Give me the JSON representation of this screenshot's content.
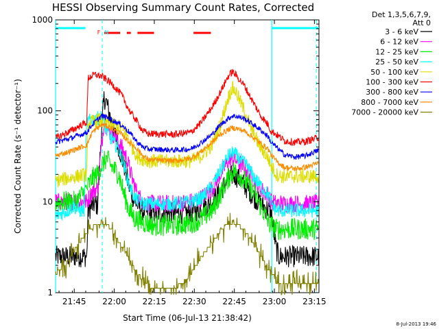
{
  "chart_data": {
    "type": "line",
    "title": "HESSI Observing Summary Count Rates, Corrected",
    "xlabel": "Start Time (06-Jul-13 21:38:42)",
    "ylabel": "Corrected Count Rate (s⁻¹ detector⁻¹)",
    "yscale": "log",
    "ylim": [
      1,
      1000
    ],
    "xlim_minutes": [
      -0.7,
      98
    ],
    "x_unit": "minutes after 21:38:42",
    "xticks": [
      {
        "label": "21:45",
        "t": 6.3
      },
      {
        "label": "22:00",
        "t": 21.3
      },
      {
        "label": "22:15",
        "t": 36.3
      },
      {
        "label": "22:30",
        "t": 51.3
      },
      {
        "label": "22:45",
        "t": 66.3
      },
      {
        "label": "23:00",
        "t": 81.3
      },
      {
        "label": "23:15",
        "t": 96.3
      }
    ],
    "yticks": [
      {
        "label": "1",
        "v": 1
      },
      {
        "label": "10",
        "v": 10
      },
      {
        "label": "100",
        "v": 100
      },
      {
        "label": "1000",
        "v": 1000
      }
    ],
    "legend_header": [
      "Det 1,3,5,6,7,9,",
      "Att 0"
    ],
    "legend_position": "right",
    "series": [
      {
        "name": "3 - 6 keV",
        "color": "#000000",
        "noise": 0.12,
        "points": [
          [
            -0.7,
            2.5
          ],
          [
            7,
            2.5
          ],
          [
            11,
            2.5
          ],
          [
            11.5,
            8
          ],
          [
            13,
            9
          ],
          [
            14,
            9.5
          ],
          [
            15,
            9
          ],
          [
            16.5,
            60
          ],
          [
            17.5,
            140
          ],
          [
            18.5,
            120
          ],
          [
            20,
            80
          ],
          [
            22,
            50
          ],
          [
            25,
            25
          ],
          [
            27,
            14
          ],
          [
            29,
            10
          ],
          [
            32,
            8
          ],
          [
            35,
            7.5
          ],
          [
            40,
            7.5
          ],
          [
            44,
            7.5
          ],
          [
            50,
            7.5
          ],
          [
            54,
            8.5
          ],
          [
            58,
            10
          ],
          [
            61,
            13
          ],
          [
            64,
            18
          ],
          [
            66,
            20
          ],
          [
            68,
            18
          ],
          [
            71,
            14
          ],
          [
            74,
            11
          ],
          [
            76,
            9.5
          ],
          [
            78,
            8.5
          ],
          [
            80,
            8
          ],
          [
            82,
            3
          ],
          [
            83,
            2.5
          ],
          [
            98,
            2.5
          ]
        ]
      },
      {
        "name": "6 - 12 keV",
        "color": "#ff00ff",
        "noise": 0.1,
        "points": [
          [
            -0.7,
            10
          ],
          [
            11,
            10
          ],
          [
            13,
            13
          ],
          [
            15,
            14
          ],
          [
            16.5,
            40
          ],
          [
            17.5,
            80
          ],
          [
            19,
            60
          ],
          [
            21,
            55
          ],
          [
            24,
            40
          ],
          [
            26,
            30
          ],
          [
            28,
            18
          ],
          [
            30,
            12
          ],
          [
            32,
            10
          ],
          [
            35,
            9.5
          ],
          [
            44,
            9.5
          ],
          [
            50,
            10
          ],
          [
            54,
            11
          ],
          [
            58,
            14
          ],
          [
            61,
            20
          ],
          [
            64,
            28
          ],
          [
            66,
            30
          ],
          [
            68,
            27
          ],
          [
            71,
            22
          ],
          [
            74,
            17
          ],
          [
            77,
            13
          ],
          [
            79,
            12
          ],
          [
            80,
            10
          ],
          [
            82,
            9.5
          ],
          [
            98,
            9.5
          ]
        ]
      },
      {
        "name": "12 - 25 keV",
        "color": "#00ee00",
        "noise": 0.12,
        "points": [
          [
            -0.7,
            10
          ],
          [
            7,
            10
          ],
          [
            11,
            14
          ],
          [
            13,
            18
          ],
          [
            15,
            20
          ],
          [
            16.5,
            25
          ],
          [
            18.5,
            30
          ],
          [
            20,
            25
          ],
          [
            23,
            20
          ],
          [
            25,
            12
          ],
          [
            27,
            8
          ],
          [
            29,
            6.5
          ],
          [
            32,
            6
          ],
          [
            36,
            5.5
          ],
          [
            44,
            5.5
          ],
          [
            50,
            5.8
          ],
          [
            54,
            6.5
          ],
          [
            58,
            8
          ],
          [
            61,
            12
          ],
          [
            64,
            18
          ],
          [
            66,
            22
          ],
          [
            68,
            20
          ],
          [
            71,
            16
          ],
          [
            74,
            12
          ],
          [
            77,
            8
          ],
          [
            79,
            6
          ],
          [
            80,
            5.5
          ],
          [
            82,
            5
          ],
          [
            98,
            5
          ]
        ]
      },
      {
        "name": "25 - 50 keV",
        "color": "#00ffff",
        "noise": 0.08,
        "points": [
          [
            -0.7,
            7
          ],
          [
            4,
            8
          ],
          [
            6,
            9
          ],
          [
            8,
            8
          ],
          [
            10,
            8
          ],
          [
            11,
            75
          ],
          [
            13,
            80
          ],
          [
            16.5,
            85
          ],
          [
            18.5,
            60
          ],
          [
            21,
            45
          ],
          [
            23,
            38
          ],
          [
            25,
            25
          ],
          [
            27,
            15
          ],
          [
            29,
            11
          ],
          [
            32,
            9.5
          ],
          [
            36,
            9.5
          ],
          [
            44,
            9.5
          ],
          [
            50,
            10
          ],
          [
            54,
            11
          ],
          [
            58,
            15
          ],
          [
            61,
            22
          ],
          [
            64,
            32
          ],
          [
            66,
            35
          ],
          [
            68,
            30
          ],
          [
            71,
            25
          ],
          [
            74,
            18
          ],
          [
            77,
            14
          ],
          [
            79,
            12
          ],
          [
            80,
            10
          ],
          [
            82,
            8
          ],
          [
            98,
            8
          ]
        ]
      },
      {
        "name": "50 - 100 keV",
        "color": "#dddd00",
        "noise": 0.08,
        "points": [
          [
            -0.7,
            17
          ],
          [
            11,
            20
          ],
          [
            11.5,
            72
          ],
          [
            14,
            78
          ],
          [
            16.5,
            80
          ],
          [
            18.5,
            75
          ],
          [
            20,
            70
          ],
          [
            23,
            68
          ],
          [
            26,
            55
          ],
          [
            28,
            40
          ],
          [
            30,
            31
          ],
          [
            34,
            28
          ],
          [
            44,
            28
          ],
          [
            50,
            28
          ],
          [
            54,
            32
          ],
          [
            58,
            42
          ],
          [
            61,
            70
          ],
          [
            64,
            140
          ],
          [
            65.5,
            180
          ],
          [
            67,
            160
          ],
          [
            70,
            100
          ],
          [
            73,
            60
          ],
          [
            76,
            40
          ],
          [
            79,
            30
          ],
          [
            80,
            25
          ],
          [
            82,
            20
          ],
          [
            84,
            19
          ],
          [
            98,
            19
          ]
        ]
      },
      {
        "name": "100 - 300 keV",
        "color": "#ff0000",
        "noise": 0.04,
        "points": [
          [
            -0.7,
            50
          ],
          [
            5,
            60
          ],
          [
            9,
            70
          ],
          [
            11,
            75
          ],
          [
            11.5,
            230
          ],
          [
            14,
            250
          ],
          [
            16.5,
            240
          ],
          [
            18.5,
            220
          ],
          [
            21,
            190
          ],
          [
            24,
            150
          ],
          [
            27,
            100
          ],
          [
            30,
            75
          ],
          [
            32,
            60
          ],
          [
            34,
            56
          ],
          [
            44,
            55
          ],
          [
            50,
            58
          ],
          [
            54,
            75
          ],
          [
            58,
            110
          ],
          [
            61,
            160
          ],
          [
            64,
            240
          ],
          [
            65.5,
            270
          ],
          [
            67,
            245
          ],
          [
            70,
            190
          ],
          [
            73,
            130
          ],
          [
            76,
            90
          ],
          [
            79,
            70
          ],
          [
            80,
            60
          ],
          [
            82,
            55
          ],
          [
            85,
            47
          ],
          [
            89,
            45
          ],
          [
            93,
            46
          ],
          [
            97,
            50
          ],
          [
            98,
            52
          ]
        ]
      },
      {
        "name": "300 - 800 keV",
        "color": "#0000ff",
        "noise": 0.03,
        "points": [
          [
            -0.7,
            45
          ],
          [
            5,
            50
          ],
          [
            9,
            55
          ],
          [
            11,
            58
          ],
          [
            13,
            70
          ],
          [
            16.5,
            88
          ],
          [
            18.5,
            85
          ],
          [
            21,
            78
          ],
          [
            24,
            70
          ],
          [
            27,
            58
          ],
          [
            30,
            45
          ],
          [
            32,
            40
          ],
          [
            34,
            38
          ],
          [
            44,
            37
          ],
          [
            50,
            38
          ],
          [
            54,
            45
          ],
          [
            58,
            55
          ],
          [
            61,
            70
          ],
          [
            64,
            82
          ],
          [
            65.5,
            88
          ],
          [
            67,
            87
          ],
          [
            70,
            82
          ],
          [
            73,
            72
          ],
          [
            76,
            62
          ],
          [
            79,
            52
          ],
          [
            80,
            45
          ],
          [
            82,
            40
          ],
          [
            85,
            33
          ],
          [
            89,
            31
          ],
          [
            93,
            32
          ],
          [
            97,
            36
          ],
          [
            98,
            37
          ]
        ]
      },
      {
        "name": "800 - 7000 keV",
        "color": "#ff8c00",
        "noise": 0.03,
        "points": [
          [
            -0.7,
            32
          ],
          [
            5,
            36
          ],
          [
            9,
            40
          ],
          [
            11,
            42
          ],
          [
            13,
            58
          ],
          [
            16.5,
            70
          ],
          [
            18.5,
            68
          ],
          [
            21,
            62
          ],
          [
            24,
            55
          ],
          [
            27,
            45
          ],
          [
            30,
            38
          ],
          [
            32,
            32
          ],
          [
            34,
            29
          ],
          [
            44,
            28
          ],
          [
            50,
            30
          ],
          [
            54,
            36
          ],
          [
            58,
            45
          ],
          [
            61,
            55
          ],
          [
            64,
            62
          ],
          [
            65.5,
            65
          ],
          [
            67,
            64
          ],
          [
            70,
            60
          ],
          [
            73,
            52
          ],
          [
            76,
            44
          ],
          [
            79,
            38
          ],
          [
            80,
            33
          ],
          [
            82,
            28
          ],
          [
            85,
            24
          ],
          [
            89,
            23
          ],
          [
            93,
            24
          ],
          [
            97,
            26
          ],
          [
            98,
            27
          ]
        ]
      },
      {
        "name": "7000 - 20000 keV",
        "color": "#808000",
        "noise": 0.06,
        "stairs": true,
        "points": [
          [
            -0.7,
            1.6
          ],
          [
            4,
            2.2
          ],
          [
            8,
            3.5
          ],
          [
            11,
            4.5
          ],
          [
            14,
            5.5
          ],
          [
            16.5,
            6
          ],
          [
            19,
            5.5
          ],
          [
            22,
            4
          ],
          [
            25,
            3
          ],
          [
            28,
            2
          ],
          [
            31,
            1.5
          ],
          [
            34,
            1.2
          ],
          [
            40,
            1.1
          ],
          [
            46,
            1.2
          ],
          [
            50,
            1.6
          ],
          [
            54,
            2.5
          ],
          [
            58,
            3.5
          ],
          [
            61,
            4.8
          ],
          [
            64,
            5.8
          ],
          [
            66,
            6
          ],
          [
            68,
            5.5
          ],
          [
            71,
            4.5
          ],
          [
            74,
            3.2
          ],
          [
            77,
            2.3
          ],
          [
            79,
            1.8
          ],
          [
            81,
            1.6
          ],
          [
            82,
            1.2
          ],
          [
            98,
            1.2
          ]
        ]
      }
    ],
    "attenuator_lines": {
      "color": "#00ffff",
      "solid_segments_minutes": [
        [
          -0.7,
          10.5
        ],
        [
          80.3,
          98
        ]
      ],
      "dashed_verticals_minutes": [
        16.8,
        97
      ],
      "solid_verticals_minutes": [
        -0.7,
        80.3
      ]
    },
    "flare_flags": {
      "color": "#ff0000",
      "segments_minutes": [
        [
          17.5,
          23.5
        ],
        [
          26,
          27.5
        ],
        [
          30,
          36.2
        ],
        [
          51,
          57.5
        ]
      ],
      "labels": [
        {
          "text": "F",
          "color": "#ff0000",
          "t": 15.5
        },
        {
          "text": "N",
          "color": "#00ffff",
          "t": 18.4
        }
      ]
    },
    "grid": false
  },
  "timestamp": "8-Jul-2013 19:46"
}
